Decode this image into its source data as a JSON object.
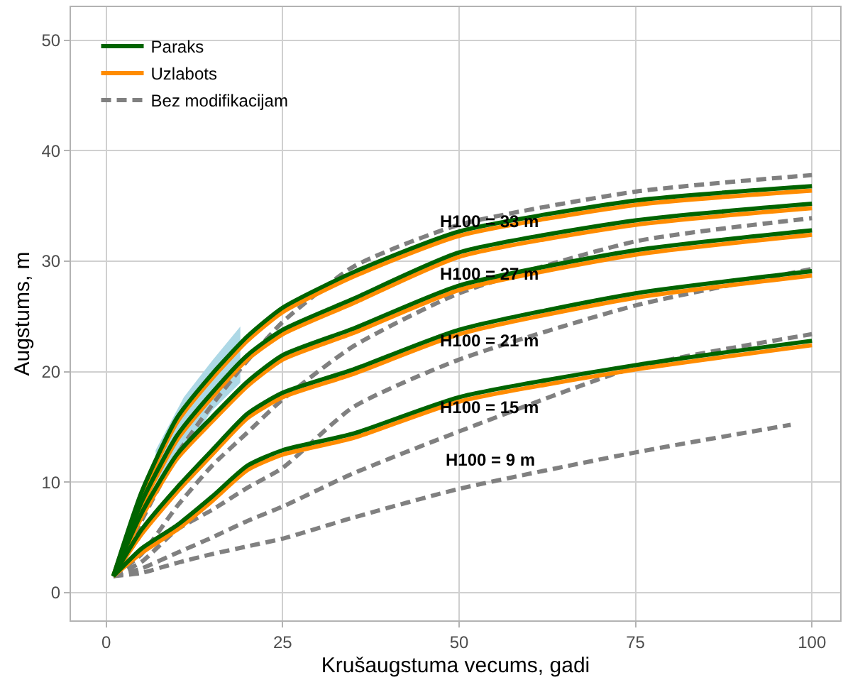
{
  "chart_data": {
    "type": "line",
    "xlabel": "Krušaugstuma vecums, gadi",
    "ylabel": "Augstums, m",
    "x": [
      1,
      5,
      10,
      15,
      20,
      25,
      35,
      50,
      75,
      100
    ],
    "xlim": [
      -5,
      104
    ],
    "xticks": [
      0,
      25,
      50,
      75,
      100
    ],
    "ylim": [
      -2.5,
      53
    ],
    "yticks": [
      0,
      10,
      20,
      30,
      40,
      50
    ],
    "grid": true,
    "legend": "top left",
    "marker": "none",
    "series": [
      {
        "type": "line",
        "color": "#add8e6",
        "x": [
          7,
          11,
          15,
          19
        ],
        "values": [
          null,
          null,
          null,
          null
        ],
        "lower": [
          10.0,
          12.8,
          16.5,
          19.0
        ],
        "upper": [
          12.9,
          17.7,
          21.0,
          24.1
        ]
      },
      {
        "name": "Bez modifikacijam",
        "color": "#808080",
        "line_style": "dashed",
        "values": [
          1.5,
          6.5,
          12.5,
          17.0,
          21.0,
          24.5,
          29.5,
          33.3,
          36.3,
          37.8
        ]
      },
      {
        "color": "#808080",
        "line_style": "dashed",
        "values": [
          1.5,
          3.5,
          7.8,
          11.5,
          14.5,
          17.5,
          22.3,
          27.1,
          31.8,
          33.9
        ]
      },
      {
        "color": "#808080",
        "line_style": "dashed",
        "values": [
          1.5,
          2.8,
          5.7,
          7.5,
          9.5,
          11.3,
          16.8,
          21.1,
          26.0,
          29.3
        ]
      },
      {
        "color": "#808080",
        "line_style": "dashed",
        "values": [
          1.5,
          2.2,
          3.6,
          5.0,
          6.5,
          7.8,
          10.8,
          14.6,
          20.4,
          23.4
        ]
      },
      {
        "color": "#808080",
        "line_style": "dashed",
        "x": [
          1,
          5,
          10,
          15,
          20,
          25,
          35,
          50,
          75,
          97
        ],
        "values": [
          1.5,
          1.8,
          2.7,
          3.5,
          4.2,
          4.9,
          6.8,
          9.4,
          12.7,
          15.2
        ]
      },
      {
        "name": "Uzlabots",
        "color": "#ff8c00",
        "line_style": "solid",
        "values": [
          1.5,
          8.7,
          15.4,
          19.4,
          22.8,
          25.4,
          28.6,
          32.3,
          35.1,
          36.4
        ]
      },
      {
        "color": "#ff8c00",
        "line_style": "solid",
        "values": [
          1.5,
          7.8,
          13.8,
          17.7,
          21.1,
          23.4,
          26.2,
          30.4,
          33.3,
          34.8
        ]
      },
      {
        "color": "#ff8c00",
        "line_style": "solid",
        "values": [
          1.5,
          6.8,
          12.1,
          15.5,
          18.7,
          21.1,
          23.5,
          27.4,
          30.6,
          32.4
        ]
      },
      {
        "color": "#ff8c00",
        "line_style": "solid",
        "values": [
          1.5,
          5.3,
          9.1,
          12.5,
          15.8,
          17.7,
          19.8,
          23.4,
          26.7,
          28.7
        ]
      },
      {
        "color": "#ff8c00",
        "line_style": "solid",
        "values": [
          1.5,
          3.6,
          5.7,
          8.3,
          11.1,
          12.5,
          14.0,
          17.3,
          20.2,
          22.4
        ]
      },
      {
        "name": "Paraks",
        "color": "#006400",
        "line_style": "solid",
        "values": [
          1.5,
          9.1,
          15.8,
          19.8,
          23.2,
          25.8,
          29.0,
          32.7,
          35.5,
          36.8
        ]
      },
      {
        "color": "#006400",
        "line_style": "solid",
        "values": [
          1.5,
          8.2,
          14.2,
          18.1,
          21.5,
          23.8,
          26.6,
          30.8,
          33.7,
          35.2
        ]
      },
      {
        "color": "#006400",
        "line_style": "solid",
        "values": [
          1.5,
          7.2,
          12.5,
          15.9,
          19.1,
          21.5,
          23.9,
          27.8,
          31.0,
          32.8
        ]
      },
      {
        "color": "#006400",
        "line_style": "solid",
        "values": [
          1.5,
          5.7,
          9.5,
          12.9,
          16.2,
          18.1,
          20.2,
          23.8,
          27.1,
          29.1
        ]
      },
      {
        "color": "#006400",
        "line_style": "solid",
        "values": [
          1.5,
          4.0,
          6.1,
          8.7,
          11.5,
          12.9,
          14.4,
          17.7,
          20.6,
          22.8
        ]
      }
    ],
    "annotations": [
      "H100 = 33 m",
      "H100 = 27 m",
      "H100 = 21 m",
      "H100 = 15 m",
      "H100 = 9 m"
    ]
  }
}
